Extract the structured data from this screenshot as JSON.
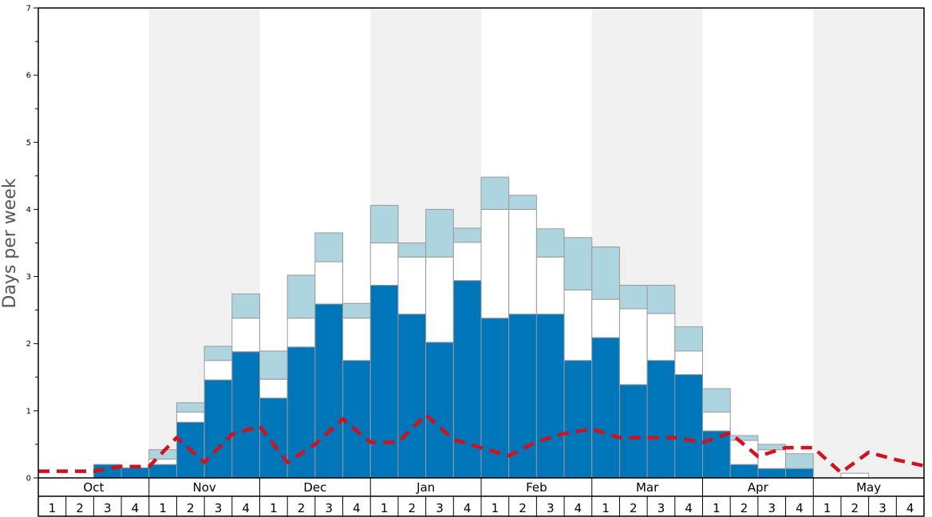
{
  "chart_data": {
    "type": "bar",
    "title": "",
    "ylabel": "Days per week",
    "xlabel": "",
    "ylim": [
      0,
      7
    ],
    "yticks": [
      "0",
      "1",
      "2",
      "3",
      "4",
      "5",
      "6",
      "7"
    ],
    "months": [
      "Oct",
      "Nov",
      "Dec",
      "Jan",
      "Feb",
      "Mar",
      "Apr",
      "May"
    ],
    "weeks": [
      "1",
      "2",
      "3",
      "4"
    ],
    "shaded_months": [
      "Nov",
      "Jan",
      "Mar",
      "May"
    ],
    "colors": {
      "dark": "#0075b8",
      "middle": "#ffffff",
      "light": "#aed4e0",
      "line": "#d0121f",
      "band": "#f0f0f0",
      "bar_stroke": "#999999"
    },
    "series": [
      {
        "name": "",
        "key": "dark",
        "values": [
          0,
          0,
          0.2,
          0.15,
          0.2,
          0.83,
          1.46,
          1.88,
          1.19,
          1.95,
          2.59,
          1.75,
          2.87,
          2.44,
          2.02,
          2.94,
          2.38,
          2.44,
          2.44,
          1.75,
          2.09,
          1.39,
          1.75,
          1.54,
          0.7,
          0.2,
          0.14,
          0.14,
          0,
          0,
          0,
          0
        ]
      },
      {
        "name": "",
        "key": "middle",
        "values": [
          0,
          0,
          0,
          0,
          0.08,
          0.15,
          0.29,
          0.5,
          0.28,
          0.43,
          0.63,
          0.63,
          0.63,
          0.85,
          1.27,
          0.57,
          1.62,
          1.56,
          0.85,
          1.05,
          0.57,
          1.13,
          0.7,
          0.35,
          0.28,
          0.36,
          0.28,
          0,
          0,
          0.07,
          0,
          0
        ]
      },
      {
        "name": "",
        "key": "light",
        "values": [
          0,
          0,
          0,
          0,
          0.14,
          0.14,
          0.21,
          0.36,
          0.42,
          0.64,
          0.43,
          0.22,
          0.56,
          0.21,
          0.71,
          0.21,
          0.48,
          0.21,
          0.42,
          0.78,
          0.78,
          0.35,
          0.42,
          0.36,
          0.35,
          0.07,
          0.08,
          0.22,
          0,
          0,
          0,
          0
        ]
      }
    ],
    "line": {
      "name": "",
      "values": [
        0.1,
        0.1,
        0.1,
        0.17,
        0.17,
        0.6,
        0.23,
        0.65,
        0.77,
        0.23,
        0.5,
        0.88,
        0.53,
        0.53,
        0.94,
        0.57,
        0.45,
        0.33,
        0.54,
        0.66,
        0.73,
        0.6,
        0.6,
        0.6,
        0.53,
        0.67,
        0.32,
        0.45,
        0.45,
        0.08,
        0.38,
        0.27,
        0.18
      ]
    }
  }
}
